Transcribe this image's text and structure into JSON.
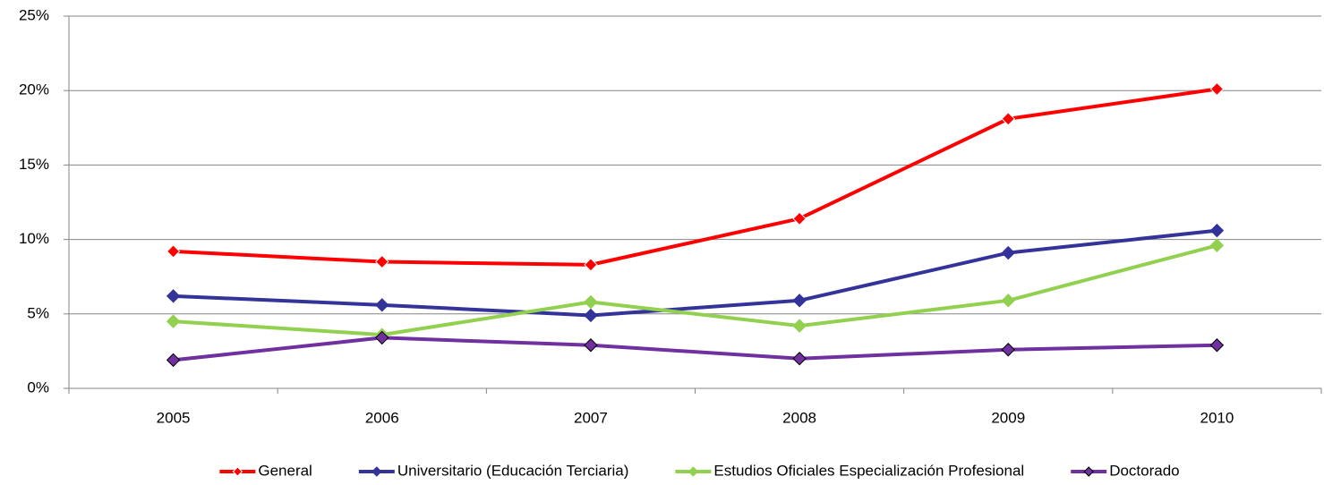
{
  "chart_data": {
    "type": "line",
    "categories": [
      "2005",
      "2006",
      "2007",
      "2008",
      "2009",
      "2010"
    ],
    "series": [
      {
        "name": "General",
        "color": "#ff0000",
        "values": [
          9.2,
          8.5,
          8.3,
          11.4,
          18.1,
          20.1
        ]
      },
      {
        "name": "Universitario (Educación Terciaria)",
        "color": "#333399",
        "values": [
          6.2,
          5.6,
          4.9,
          5.9,
          9.1,
          10.6
        ]
      },
      {
        "name": "Estudios Oficiales Especialización Profesional",
        "color": "#92d050",
        "values": [
          4.5,
          3.6,
          5.8,
          4.2,
          5.9,
          9.6
        ]
      },
      {
        "name": "Doctorado",
        "color": "#7030a0",
        "values": [
          1.9,
          3.4,
          2.9,
          2.0,
          2.6,
          2.9
        ]
      }
    ],
    "ylim": [
      0,
      25
    ],
    "yticks": [
      {
        "value": 0,
        "label": "0%"
      },
      {
        "value": 5,
        "label": "5%"
      },
      {
        "value": 10,
        "label": "10%"
      },
      {
        "value": 15,
        "label": "15%"
      },
      {
        "value": 20,
        "label": "20%"
      },
      {
        "value": 25,
        "label": "25%"
      }
    ],
    "grid": true,
    "legend": "bottom"
  }
}
